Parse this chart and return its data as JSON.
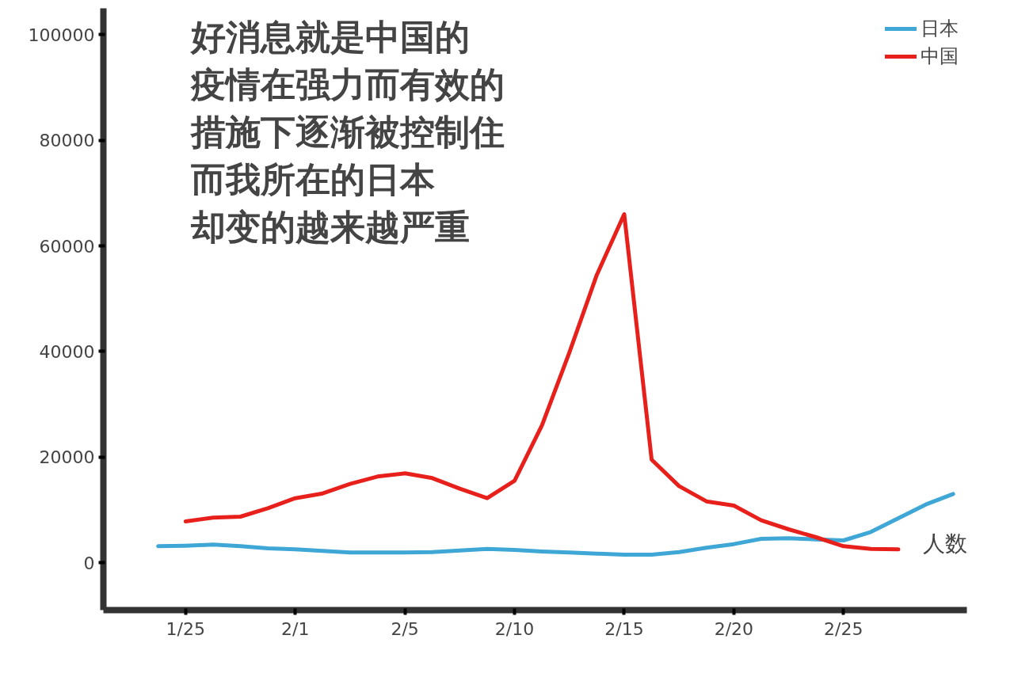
{
  "chart_data": {
    "type": "line",
    "annotations": [
      "好消息就是中国的",
      "疫情在强力而有效的",
      "措施下逐渐被控制住",
      "而我所在的日本",
      "却变的越来越严重"
    ],
    "xlabel": "人数",
    "categories": [
      null,
      "1/25",
      null,
      null,
      null,
      "2/1",
      null,
      null,
      null,
      "2/5",
      null,
      null,
      null,
      "2/10",
      null,
      null,
      null,
      "2/15",
      null,
      null,
      null,
      "2/20",
      null,
      null,
      null,
      "2/25",
      null,
      null,
      null,
      null
    ],
    "ylim": [
      -9000,
      105000
    ],
    "yticks": [
      0,
      20000,
      40000,
      60000,
      80000,
      100000
    ],
    "grid": false,
    "legend": "top right",
    "line_style": "solid",
    "series": [
      {
        "name": "日本",
        "color": "#3fa7d6",
        "values": [
          3100,
          3200,
          3400,
          3100,
          2700,
          2500,
          2200,
          1900,
          1900,
          1900,
          2000,
          2300,
          2600,
          2400,
          2100,
          1900,
          1700,
          1500,
          1500,
          2000,
          2800,
          3500,
          4500,
          4600,
          4400,
          4200,
          5800,
          8400,
          11000,
          13000
        ]
      },
      {
        "name": "中国",
        "color": "#e8201c",
        "values": [
          null,
          7800,
          8500,
          8700,
          10300,
          12200,
          13100,
          14900,
          16300,
          16900,
          16000,
          14000,
          12200,
          15500,
          26000,
          39800,
          54500,
          66000,
          19500,
          14500,
          11600,
          10800,
          8000,
          6300,
          4800,
          3100,
          2600,
          2500,
          null,
          null
        ]
      }
    ]
  }
}
